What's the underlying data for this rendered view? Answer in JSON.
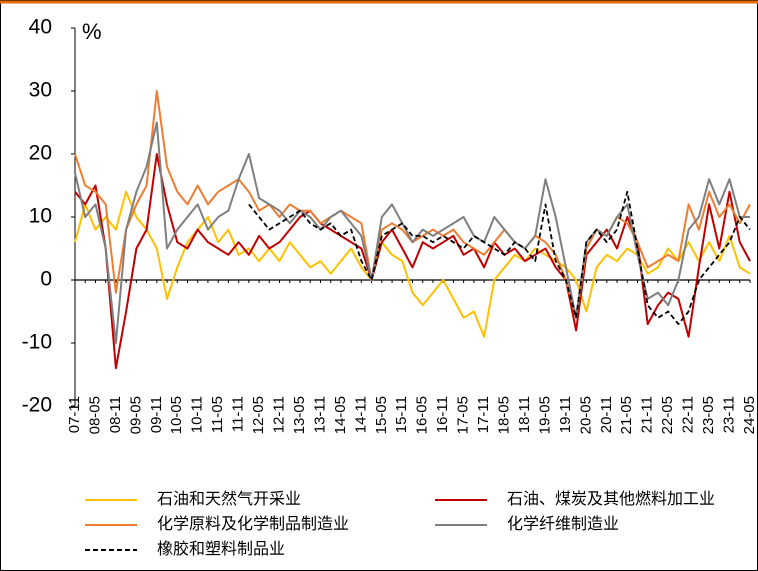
{
  "chart_data": {
    "type": "line",
    "y_unit": "%",
    "legend": "bottom",
    "categories": [
      "07-11",
      null,
      "08-05",
      null,
      "08-11",
      null,
      "09-05",
      null,
      "09-11",
      null,
      "10-05",
      null,
      "10-11",
      null,
      "11-05",
      null,
      "11-11",
      null,
      "12-05",
      null,
      "12-11",
      null,
      "13-05",
      null,
      "13-11",
      null,
      "14-05",
      null,
      "14-11",
      null,
      "15-05",
      null,
      "15-11",
      null,
      "16-05",
      null,
      "16-11",
      null,
      "17-05",
      null,
      "17-11",
      null,
      "18-05",
      null,
      "18-11",
      null,
      "19-05",
      null,
      "19-11",
      null,
      "20-05",
      null,
      "20-11",
      null,
      "21-05",
      null,
      "21-11",
      null,
      "22-05",
      null,
      "22-11",
      null,
      "23-05",
      null,
      "23-11",
      null,
      "24-05"
    ],
    "ylim": [
      -20,
      40
    ],
    "yticks": [
      -20,
      -10,
      0,
      10,
      20,
      30,
      40
    ],
    "series": [
      {
        "name": "石油和天然气开采业",
        "color": "#ffc000",
        "values": [
          6,
          12,
          8,
          10,
          8,
          14,
          10,
          8,
          5,
          -3,
          2,
          6,
          8,
          10,
          6,
          8,
          4,
          5,
          3,
          5,
          3,
          6,
          4,
          2,
          3,
          1,
          3,
          5,
          2,
          0,
          6,
          4,
          3,
          -2,
          -4,
          -2,
          0,
          -3,
          -6,
          -5,
          -9,
          0,
          2,
          4,
          3,
          5,
          4,
          3,
          2,
          0,
          -5,
          2,
          4,
          3,
          5,
          4,
          1,
          2,
          5,
          3,
          6,
          3,
          6,
          3,
          7,
          2,
          1
        ]
      },
      {
        "name": "石油、煤炭及其他燃料加工业",
        "color": "#c00000",
        "values": [
          14,
          12,
          15,
          5,
          -14,
          -5,
          5,
          8,
          20,
          12,
          6,
          5,
          8,
          6,
          5,
          4,
          6,
          4,
          7,
          5,
          6,
          8,
          10,
          11,
          9,
          8,
          7,
          6,
          5,
          0,
          6,
          8,
          5,
          2,
          6,
          5,
          6,
          7,
          4,
          5,
          2,
          6,
          4,
          5,
          3,
          4,
          5,
          2,
          0,
          -8,
          4,
          6,
          8,
          5,
          10,
          6,
          -7,
          -4,
          -2,
          -3,
          -9,
          2,
          12,
          5,
          14,
          6,
          3
        ]
      },
      {
        "name": "化学原料及化学制品制造业",
        "color": "#ed7d31",
        "values": [
          20,
          15,
          14,
          12,
          -2,
          8,
          12,
          15,
          30,
          18,
          14,
          12,
          15,
          12,
          14,
          15,
          16,
          14,
          11,
          12,
          10,
          12,
          11,
          11,
          9,
          10,
          11,
          10,
          9,
          0,
          8,
          9,
          8,
          6,
          7,
          8,
          7,
          8,
          6,
          5,
          4,
          6,
          8,
          6,
          5,
          7,
          6,
          4,
          0,
          -6,
          5,
          8,
          7,
          10,
          9,
          6,
          2,
          3,
          4,
          3,
          12,
          8,
          14,
          10,
          12,
          9,
          12
        ]
      },
      {
        "name": "化学纤维制造业",
        "color": "#7f7f7f",
        "values": [
          17,
          10,
          12,
          5,
          -10,
          8,
          14,
          18,
          25,
          5,
          8,
          10,
          12,
          8,
          10,
          11,
          16,
          20,
          13,
          12,
          11,
          9,
          11,
          10,
          8,
          10,
          11,
          9,
          7,
          0,
          10,
          12,
          9,
          6,
          8,
          7,
          8,
          9,
          10,
          7,
          6,
          10,
          8,
          6,
          5,
          7,
          16,
          10,
          2,
          -6,
          6,
          8,
          7,
          10,
          12,
          4,
          -3,
          -2,
          -4,
          0,
          8,
          10,
          16,
          12,
          16,
          10,
          10
        ]
      },
      {
        "name": "橡胶和塑料制品业",
        "color": "#000000",
        "dash": true,
        "values": [
          null,
          null,
          null,
          null,
          null,
          null,
          null,
          null,
          null,
          null,
          null,
          null,
          null,
          null,
          null,
          null,
          null,
          12,
          10,
          8,
          9,
          10,
          11,
          9,
          8,
          9,
          7,
          8,
          3,
          0,
          7,
          8,
          9,
          7,
          7,
          6,
          7,
          6,
          5,
          7,
          6,
          5,
          4,
          6,
          5,
          3,
          12,
          3,
          0,
          -6,
          6,
          8,
          6,
          8,
          14,
          5,
          -4,
          -6,
          -5,
          -7,
          -5,
          0,
          2,
          4,
          6,
          10,
          8
        ]
      }
    ]
  }
}
